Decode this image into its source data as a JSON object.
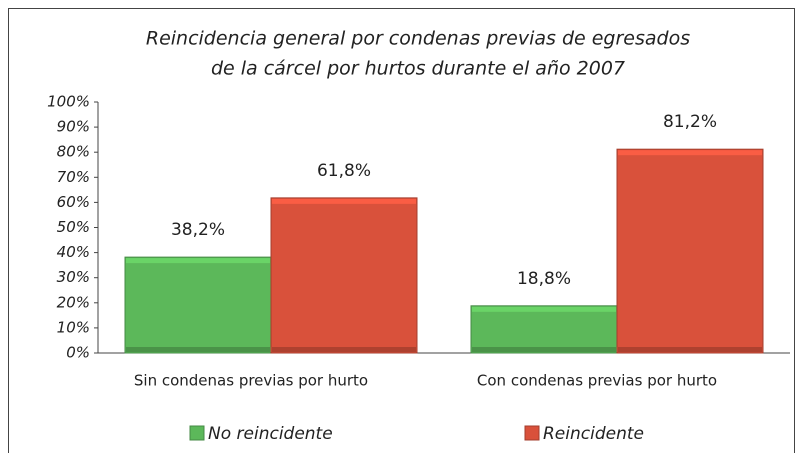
{
  "chart_data": {
    "type": "bar",
    "title": [
      "Reincidencia general por condenas previas de egresados",
      "de la cárcel por hurtos durante el año 2007"
    ],
    "categories": [
      "Sin condenas previas por hurto",
      "Con condenas previas por hurto"
    ],
    "series": [
      {
        "name": "No reincidente",
        "color": "#5cb85a",
        "values": [
          38.2,
          18.8
        ],
        "value_labels": [
          "38,2%",
          "18,8%"
        ]
      },
      {
        "name": "Reincidente",
        "color": "#d9513b",
        "values": [
          61.8,
          81.2
        ],
        "value_labels": [
          "61,8%",
          "81,2%"
        ]
      }
    ],
    "ylim": [
      0,
      100
    ],
    "yticks": [
      {
        "value": 0,
        "label": "0%"
      },
      {
        "value": 10,
        "label": "10%"
      },
      {
        "value": 20,
        "label": "20%"
      },
      {
        "value": 30,
        "label": "30%"
      },
      {
        "value": 40,
        "label": "40%"
      },
      {
        "value": 50,
        "label": "50%"
      },
      {
        "value": 60,
        "label": "60%"
      },
      {
        "value": 70,
        "label": "70%"
      },
      {
        "value": 80,
        "label": "80%"
      },
      {
        "value": 90,
        "label": "90%"
      },
      {
        "value": 100,
        "label": "100%"
      }
    ],
    "legend": "bottom"
  }
}
